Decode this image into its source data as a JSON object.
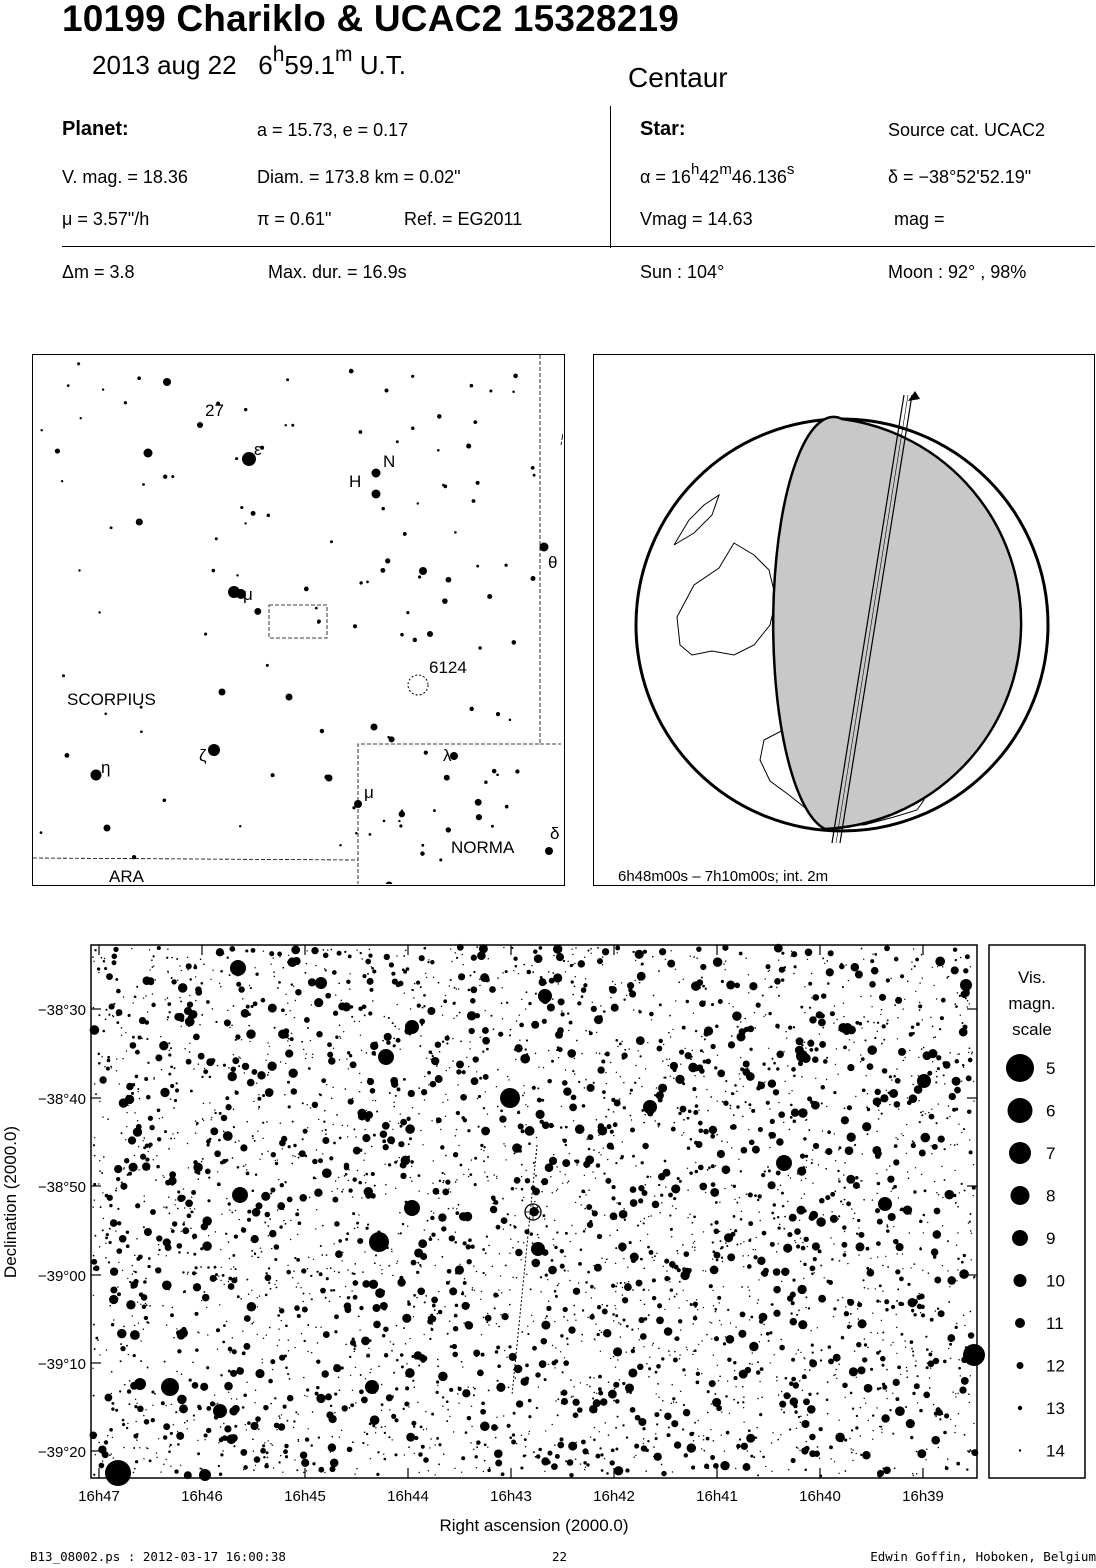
{
  "header": {
    "title": "10199 Chariklo  &  UCAC2 15328219",
    "date_text": "2013 aug 22",
    "time_hours": "6",
    "time_h_unit": "h",
    "time_minutes": "59.1",
    "time_m_unit": "m",
    "time_suffix": "U.T.",
    "object_class": "Centaur"
  },
  "planet": {
    "label": "Planet:",
    "orbit": "a = 15.73, e = 0.17",
    "vmag": "V. mag. = 18.36",
    "diam": "Diam. = 173.8 km = 0.02\"",
    "mu": "μ =  3.57\"/h",
    "pi": "π =  0.61\"",
    "ref": "Ref. = EG2011",
    "dm": "Δm = 3.8",
    "maxdur": "Max. dur. = 16.9s"
  },
  "star": {
    "label": "Star:",
    "source": "Source cat.  UCAC2",
    "alpha_prefix": "α = 16",
    "alpha_h": "h",
    "alpha_min": "42",
    "alpha_m": "m",
    "alpha_sec": "46.136",
    "alpha_s": "s",
    "delta": "δ = −38°52'52.19\"",
    "vmag": "Vmag = 14.63",
    "mag": "mag =",
    "sun": "Sun : 104°",
    "moon": "Moon :  92° , 98%"
  },
  "finder": {
    "constellation_labels": [
      "SCORPIUS",
      "ARA",
      "NORMA"
    ],
    "star_labels": [
      "27",
      "ε",
      "H",
      "N",
      "θ",
      "μ",
      "6124",
      "ζ",
      "η",
      "λ",
      "μ",
      "δ"
    ]
  },
  "globe": {
    "caption": "6h48m00s –  7h10m00s; int.  2m"
  },
  "chart_data": {
    "type": "scatter",
    "xlabel": "Right ascension (2000.0)",
    "ylabel": "Declination (2000.0)",
    "x_ticks": [
      "16h47",
      "16h46",
      "16h45",
      "16h44",
      "16h43",
      "16h42",
      "16h41",
      "16h40",
      "16h39"
    ],
    "y_ticks": [
      "−38°30",
      "−38°40",
      "−38°50",
      "−39°00",
      "−39°10",
      "−39°20"
    ],
    "target_star": {
      "ra": "16h42m46.136s",
      "dec": "−38°52'52.19\""
    }
  },
  "legend": {
    "title_lines": [
      "Vis.",
      "magn.",
      "scale"
    ],
    "magnitudes": [
      "5",
      "6",
      "7",
      "8",
      "9",
      "10",
      "11",
      "12",
      "13",
      "14"
    ]
  },
  "footer": {
    "left": "B13_08002.ps : 2012-03-17 16:00:38",
    "center": "22",
    "right": "Edwin Goffin, Hoboken, Belgium"
  }
}
